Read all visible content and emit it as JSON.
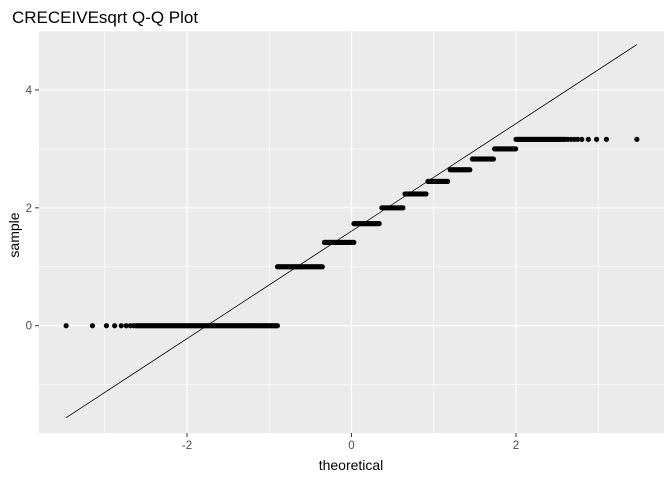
{
  "chart_data": {
    "type": "scatter",
    "title": "CRECEIVEsqrt Q-Q Plot",
    "xlabel": "theoretical",
    "ylabel": "sample",
    "xlim": [
      -3.8,
      3.8
    ],
    "ylim": [
      -1.82,
      5.0
    ],
    "x_ticks": [
      -2,
      0,
      2
    ],
    "x_tick_labels": [
      "-2",
      "0",
      "2"
    ],
    "y_ticks": [
      0,
      2,
      4
    ],
    "y_tick_labels": [
      "0",
      "2",
      "4"
    ],
    "grid": true,
    "background": "#ebebeb",
    "grid_color": "#ffffff",
    "point_color": "#000000",
    "reference_line": {
      "x": [
        -3.47,
        3.47
      ],
      "y": [
        -1.56,
        4.77
      ]
    },
    "levels": [
      {
        "sample": 0.0,
        "theoretical_from": -2.62,
        "theoretical_to": -0.9,
        "isolated_points": [
          -3.47,
          -3.15,
          -2.98,
          -2.88,
          -2.8,
          -2.74,
          -2.69,
          -2.65
        ]
      },
      {
        "sample": 1.0,
        "theoretical_from": -0.9,
        "theoretical_to": -0.35,
        "isolated_points": []
      },
      {
        "sample": 1.414,
        "theoretical_from": -0.33,
        "theoretical_to": 0.03,
        "isolated_points": []
      },
      {
        "sample": 1.732,
        "theoretical_from": 0.03,
        "theoretical_to": 0.35,
        "isolated_points": []
      },
      {
        "sample": 2.0,
        "theoretical_from": 0.37,
        "theoretical_to": 0.64,
        "isolated_points": []
      },
      {
        "sample": 2.236,
        "theoretical_from": 0.65,
        "theoretical_to": 0.92,
        "isolated_points": []
      },
      {
        "sample": 2.449,
        "theoretical_from": 0.93,
        "theoretical_to": 1.18,
        "isolated_points": []
      },
      {
        "sample": 2.646,
        "theoretical_from": 1.2,
        "theoretical_to": 1.45,
        "isolated_points": []
      },
      {
        "sample": 2.828,
        "theoretical_from": 1.47,
        "theoretical_to": 1.73,
        "isolated_points": []
      },
      {
        "sample": 3.0,
        "theoretical_from": 1.74,
        "theoretical_to": 2.0,
        "isolated_points": []
      },
      {
        "sample": 3.162,
        "theoretical_from": 2.0,
        "theoretical_to": 2.6,
        "isolated_points": [
          2.63,
          2.67,
          2.71,
          2.75,
          2.8,
          2.88,
          2.98,
          3.1,
          3.47
        ]
      }
    ]
  }
}
